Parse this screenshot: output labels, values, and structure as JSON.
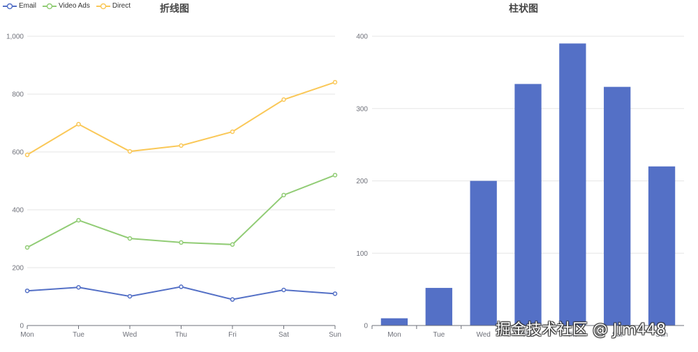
{
  "line_chart": {
    "title": "折线图",
    "legend": [
      {
        "name": "Email",
        "color": "#5470c6"
      },
      {
        "name": "Video Ads",
        "color": "#91cc75"
      },
      {
        "name": "Direct",
        "color": "#fac858"
      }
    ],
    "y_ticks": [
      "0",
      "200",
      "400",
      "600",
      "800",
      "1,000"
    ],
    "x_labels": [
      "Mon",
      "Tue",
      "Wed",
      "Thu",
      "Fri",
      "Sat",
      "Sun"
    ]
  },
  "bar_chart": {
    "title": "柱状图",
    "y_ticks": [
      "0",
      "100",
      "200",
      "300",
      "400"
    ],
    "x_labels": [
      "Mon",
      "Tue",
      "Wed",
      "Thu",
      "Fri",
      "Sat",
      "Sun"
    ],
    "color": "#5470c6"
  },
  "watermark": "掘金技术社区 @ Jim448",
  "chart_data": [
    {
      "type": "line",
      "title": "折线图",
      "categories": [
        "Mon",
        "Tue",
        "Wed",
        "Thu",
        "Fri",
        "Sat",
        "Sun"
      ],
      "series": [
        {
          "name": "Email",
          "color": "#5470c6",
          "values": [
            120,
            132,
            101,
            134,
            90,
            123,
            110
          ]
        },
        {
          "name": "Video Ads",
          "color": "#91cc75",
          "values": [
            270,
            364,
            301,
            287,
            280,
            451,
            520
          ]
        },
        {
          "name": "Direct",
          "color": "#fac858",
          "values": [
            590,
            696,
            602,
            622,
            670,
            781,
            841
          ]
        }
      ],
      "xlabel": "",
      "ylabel": "",
      "ylim": [
        0,
        1000
      ],
      "y_ticks": [
        0,
        200,
        400,
        600,
        800,
        1000
      ],
      "grid": true,
      "legend_position": "top-left"
    },
    {
      "type": "bar",
      "title": "柱状图",
      "categories": [
        "Mon",
        "Tue",
        "Wed",
        "Thu",
        "Fri",
        "Sat",
        "Sun"
      ],
      "values": [
        10,
        52,
        200,
        334,
        390,
        330,
        220
      ],
      "xlabel": "",
      "ylabel": "",
      "ylim": [
        0,
        400
      ],
      "y_ticks": [
        0,
        100,
        200,
        300,
        400
      ],
      "grid": true
    }
  ]
}
